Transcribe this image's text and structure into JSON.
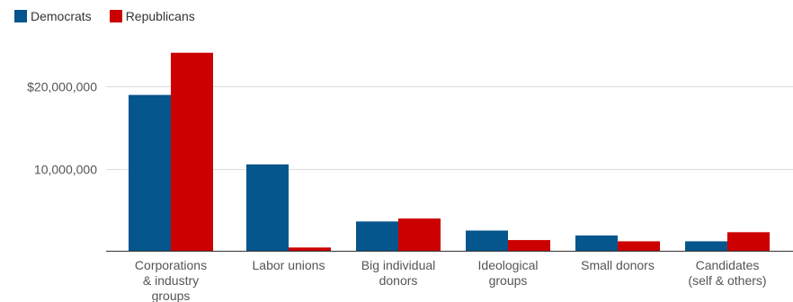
{
  "chart_data": {
    "type": "bar",
    "categories": [
      [
        "Corporations",
        "& industry",
        "groups"
      ],
      [
        "Labor unions"
      ],
      [
        "Big individual",
        "donors"
      ],
      [
        "Ideological",
        "groups"
      ],
      [
        "Small donors"
      ],
      [
        "Candidates",
        "(self & others)"
      ]
    ],
    "series": [
      {
        "name": "Democrats",
        "color": "#05568c",
        "values": [
          18900000,
          10500000,
          3600000,
          2500000,
          1900000,
          1200000
        ]
      },
      {
        "name": "Republicans",
        "color": "#cc0000",
        "values": [
          24000000,
          450000,
          3950000,
          1350000,
          1200000,
          2300000
        ]
      }
    ],
    "yticks": [
      {
        "value": 10000000,
        "label": "10,000,000"
      },
      {
        "value": 20000000,
        "label": "$20,000,000"
      }
    ],
    "ylim": [
      0,
      25000000
    ],
    "legend_position": "top-left",
    "grid": true
  }
}
